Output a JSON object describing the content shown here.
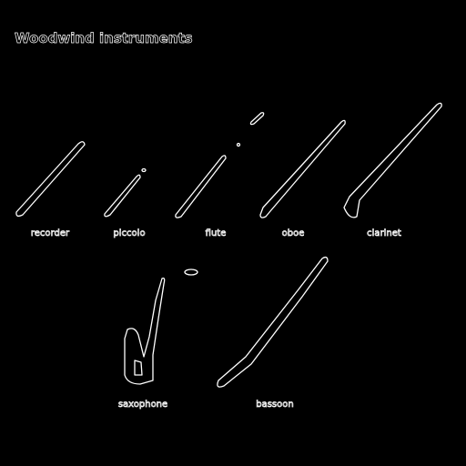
{
  "header": {
    "title": "Woodwind instruments"
  },
  "instruments": [
    {
      "label": "recorder"
    },
    {
      "label": "piccolo"
    },
    {
      "label": "flute"
    },
    {
      "label": "oboe"
    },
    {
      "label": "clarinet"
    },
    {
      "label": "saxophone"
    },
    {
      "label": "bassoon"
    }
  ]
}
